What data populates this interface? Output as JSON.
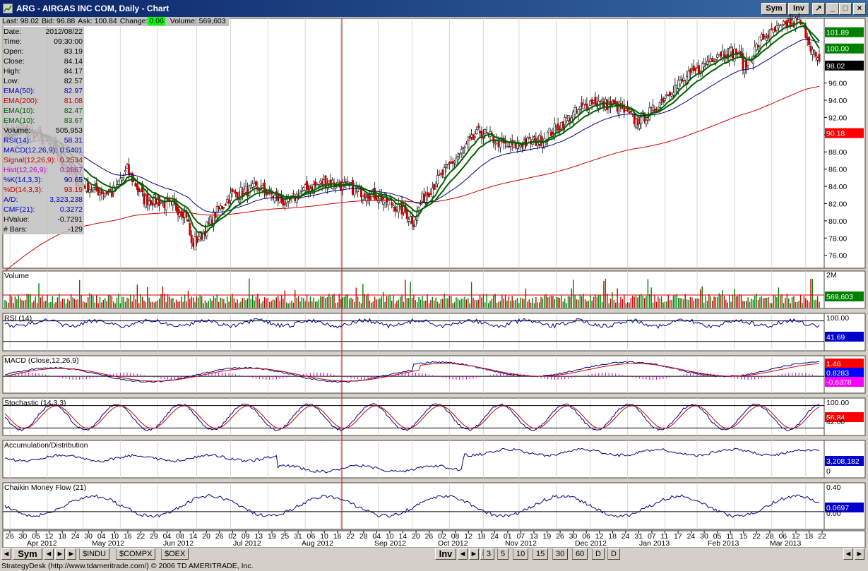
{
  "window": {
    "title": "ARG - AIRGAS INC COM, Daily - Chart",
    "buttons": {
      "sym": "Sym",
      "inv": "Inv"
    }
  },
  "infobar": {
    "last": "Last: 98.02",
    "bid": "Bid: 96.88",
    "ask": "Ask: 100.84",
    "change_label": "Change:",
    "change_value": "0.06",
    "volume": "Volume: 569,603"
  },
  "data_panel": [
    {
      "label": "Date:",
      "value": "2012/08/22",
      "color": "#000000"
    },
    {
      "label": "Time:",
      "value": "09:30:00",
      "color": "#000000"
    },
    {
      "label": "Open:",
      "value": "83.19",
      "color": "#000000"
    },
    {
      "label": "Close:",
      "value": "84.14",
      "color": "#000000"
    },
    {
      "label": "High:",
      "value": "84.17",
      "color": "#000000"
    },
    {
      "label": "Low:",
      "value": "82.57",
      "color": "#000000"
    },
    {
      "label": "EMA(50):",
      "value": "82.97",
      "color": "#0000c0"
    },
    {
      "label": "EMA(200):",
      "value": "81.08",
      "color": "#c00000"
    },
    {
      "label": "EMA(10):",
      "value": "82.47",
      "color": "#006000"
    },
    {
      "label": "EMA(10):",
      "value": "83.67",
      "color": "#006000"
    },
    {
      "label": "Volume:",
      "value": "505,953",
      "color": "#000000"
    },
    {
      "label": "RSI(14):",
      "value": "58.31",
      "color": "#0000c0"
    },
    {
      "label": "MACD(12,26,9):",
      "value": "0.5401",
      "color": "#0000c0"
    },
    {
      "label": "Signal(12,26,9):",
      "value": "0.2534",
      "color": "#c00000"
    },
    {
      "label": "Hist(12,26,9):",
      "value": "0.2867",
      "color": "#c000c0"
    },
    {
      "label": "%K(14,3,3):",
      "value": "90.65",
      "color": "#0000c0"
    },
    {
      "label": "%D(14,3,3):",
      "value": "93.19",
      "color": "#c00000"
    },
    {
      "label": "A/D:",
      "value": "3,323,238",
      "color": "#0000c0"
    },
    {
      "label": "CMF(21):",
      "value": "0.3272",
      "color": "#0000c0"
    },
    {
      "label": "HValue:",
      "value": "-0.7291",
      "color": "#000000"
    },
    {
      "label": "# Bars:",
      "value": "-129",
      "color": "#000000"
    }
  ],
  "panels": {
    "volume": "Volume",
    "rsi": "RSI (14)",
    "macd": "MACD (Close,12,26,9)",
    "stochastic": "Stochastic (14,3,3)",
    "ad": "Accumulation/Distribution",
    "cmf": "Chaikin Money Flow (21)"
  },
  "price_axis": {
    "ticks": [
      "76.00",
      "78.00",
      "80.00",
      "82.00",
      "84.00",
      "86.00",
      "88.00",
      "90.00",
      "92.00",
      "94.00",
      "96.00"
    ],
    "badges": [
      {
        "text": "101.89",
        "bg": "#008000",
        "fg": "#ffffff"
      },
      {
        "text": "100.00",
        "bg": "#008000",
        "fg": "#ffffff"
      },
      {
        "text": "98.02",
        "bg": "#000000",
        "fg": "#ffffff"
      },
      {
        "text": "90.18",
        "bg": "#ff0000",
        "fg": "#ffffff"
      }
    ]
  },
  "volume_axis": {
    "top": "2M",
    "badge": "569,603"
  },
  "rsi_axis": {
    "top": "100.00",
    "badge": "41.69"
  },
  "macd_axis": {
    "badges": [
      "1.46",
      "0.8283",
      "-0.6378"
    ]
  },
  "stoch_axis": {
    "top": "100.00",
    "badge": "56.84",
    "badge2": "42.00"
  },
  "ad_axis": {
    "badge": "3,208,182",
    "bottom": "0"
  },
  "cmf_axis": {
    "top": "0.40",
    "badge": "0.0697",
    "under": "0.00"
  },
  "date_axis": {
    "days": [
      "26",
      "30",
      "05",
      "12",
      "18",
      "24",
      "30",
      "04",
      "10",
      "16",
      "22",
      "29",
      "04",
      "08",
      "14",
      "20",
      "26",
      "02",
      "09",
      "13",
      "19",
      "25",
      "31",
      "06",
      "10",
      "16",
      "22",
      "28",
      "04",
      "10",
      "14",
      "20",
      "26",
      "02",
      "08",
      "12",
      "18",
      "24",
      "01",
      "07",
      "13",
      "19",
      "26",
      "30",
      "06",
      "12",
      "18",
      "24",
      "31",
      "07",
      "11",
      "17",
      "24",
      "30",
      "05",
      "11",
      "15",
      "22",
      "28",
      "06",
      "12",
      "18",
      "22"
    ],
    "months": [
      "Apr 2012",
      "May 2012",
      "Jun 2012",
      "Jul 2012",
      "Aug 2012",
      "Sep 2012",
      "Oct 2012",
      "Nov 2012",
      "Dec 2012",
      "Jan 2013",
      "Feb 2013",
      "Mar 2013"
    ]
  },
  "bottombar": {
    "sym": "Sym",
    "tabs": [
      "$INDU",
      "$COMPX",
      "$OEX"
    ],
    "inv": "Inv",
    "periods": [
      "3",
      "5",
      "10",
      "15",
      "30",
      "60",
      "D",
      "D"
    ]
  },
  "status": "StrategyDesk (http://www.tdameritrade.com/) © 2006 TD AMERITRADE, Inc.",
  "colors": {
    "up": "#008000",
    "down": "#cc0000",
    "ema50": "#000080",
    "ema200": "#cc0000",
    "ema10": "#006000",
    "cursor": "#cc0000"
  },
  "chart_data": {
    "type": "candlestick",
    "title": "ARG - AIRGAS INC COM, Daily - Chart",
    "date_range": [
      "2012-03-26",
      "2013-03-22"
    ],
    "ylim": [
      74.5,
      103.5
    ],
    "cursor_date": "2012/08/22",
    "close_anchors": [
      [
        0,
        90.2
      ],
      [
        10,
        90.6
      ],
      [
        20,
        89.8
      ],
      [
        30,
        88.1
      ],
      [
        42,
        84.8
      ],
      [
        52,
        83.6
      ],
      [
        63,
        83.2
      ],
      [
        72,
        85.9
      ],
      [
        82,
        82.5
      ],
      [
        90,
        82.3
      ],
      [
        100,
        81.6
      ],
      [
        107,
        80.8
      ],
      [
        110,
        77.2
      ],
      [
        116,
        78.4
      ],
      [
        124,
        80.8
      ],
      [
        134,
        83.1
      ],
      [
        150,
        83.8
      ],
      [
        166,
        82.0
      ],
      [
        176,
        83.5
      ],
      [
        190,
        84.6
      ],
      [
        204,
        83.8
      ],
      [
        222,
        82.7
      ],
      [
        236,
        81.0
      ],
      [
        241,
        79.9
      ],
      [
        246,
        82.5
      ],
      [
        262,
        86.4
      ],
      [
        280,
        90.4
      ],
      [
        296,
        88.6
      ],
      [
        316,
        89.4
      ],
      [
        334,
        92.2
      ],
      [
        346,
        93.9
      ],
      [
        362,
        93.2
      ],
      [
        372,
        91.5
      ],
      [
        382,
        92.8
      ],
      [
        392,
        95.2
      ],
      [
        408,
        97.4
      ],
      [
        420,
        99.5
      ],
      [
        432,
        99.6
      ],
      [
        436,
        97.8
      ],
      [
        446,
        101.2
      ],
      [
        460,
        102.6
      ],
      [
        468,
        103.2
      ],
      [
        472,
        101.9
      ],
      [
        476,
        99.8
      ],
      [
        480,
        98.0
      ]
    ]
  }
}
